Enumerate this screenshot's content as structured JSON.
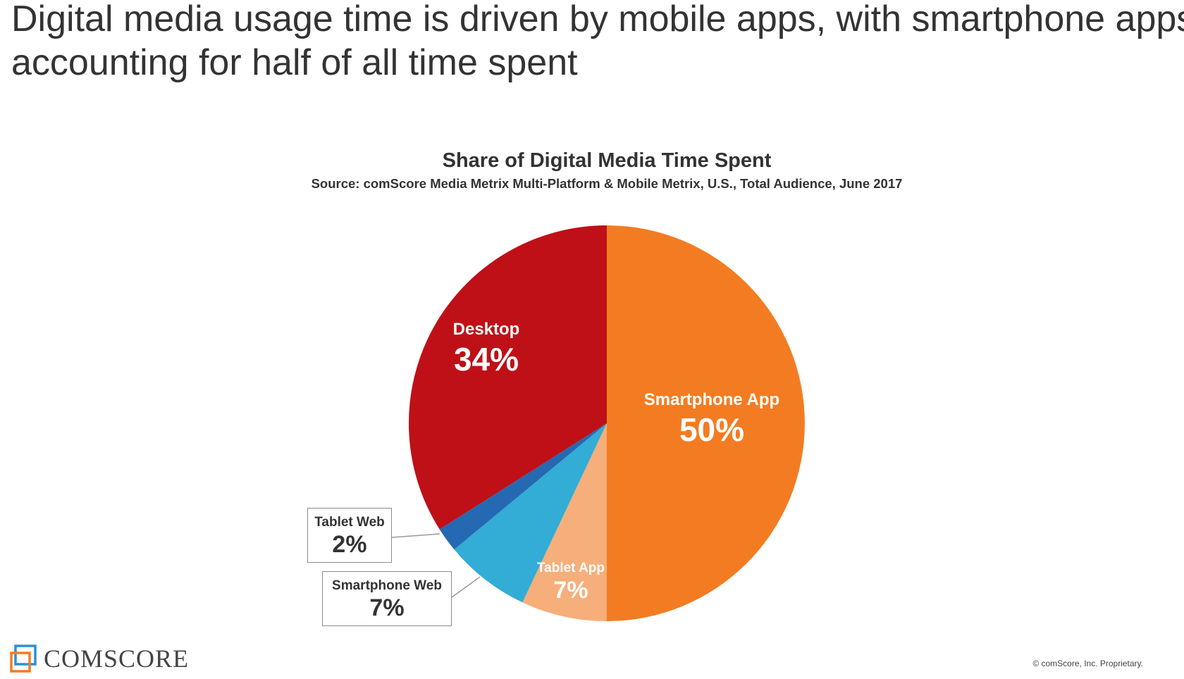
{
  "headline": {
    "line1": "Digital media usage time is driven by mobile apps, with smartphone apps",
    "line2": "accounting for half of all time spent"
  },
  "chart_data": {
    "type": "pie",
    "title": "Share of Digital Media Time Spent",
    "subtitle": "Source: comScore Media Metrix Multi-Platform & Mobile Metrix, U.S., Total Audience, June 2017",
    "slices": [
      {
        "label": "Smartphone App",
        "value": 50,
        "display": "50%",
        "color": "#f37c22"
      },
      {
        "label": "Tablet App",
        "value": 7,
        "display": "7%",
        "color": "#f6ae7a"
      },
      {
        "label": "Smartphone Web",
        "value": 7,
        "display": "7%",
        "color": "#33acd6"
      },
      {
        "label": "Tablet Web",
        "value": 2,
        "display": "2%",
        "color": "#2469b2"
      },
      {
        "label": "Desktop",
        "value": 34,
        "display": "34%",
        "color": "#bf1018"
      }
    ],
    "start_angle_deg": 0,
    "direction": "clockwise"
  },
  "footer": {
    "logo_text": "COMSCORE",
    "copyright": "© comScore, Inc. Proprietary."
  },
  "colors": {
    "leader_line": "#9a9a9a",
    "title_text": "#333333"
  }
}
